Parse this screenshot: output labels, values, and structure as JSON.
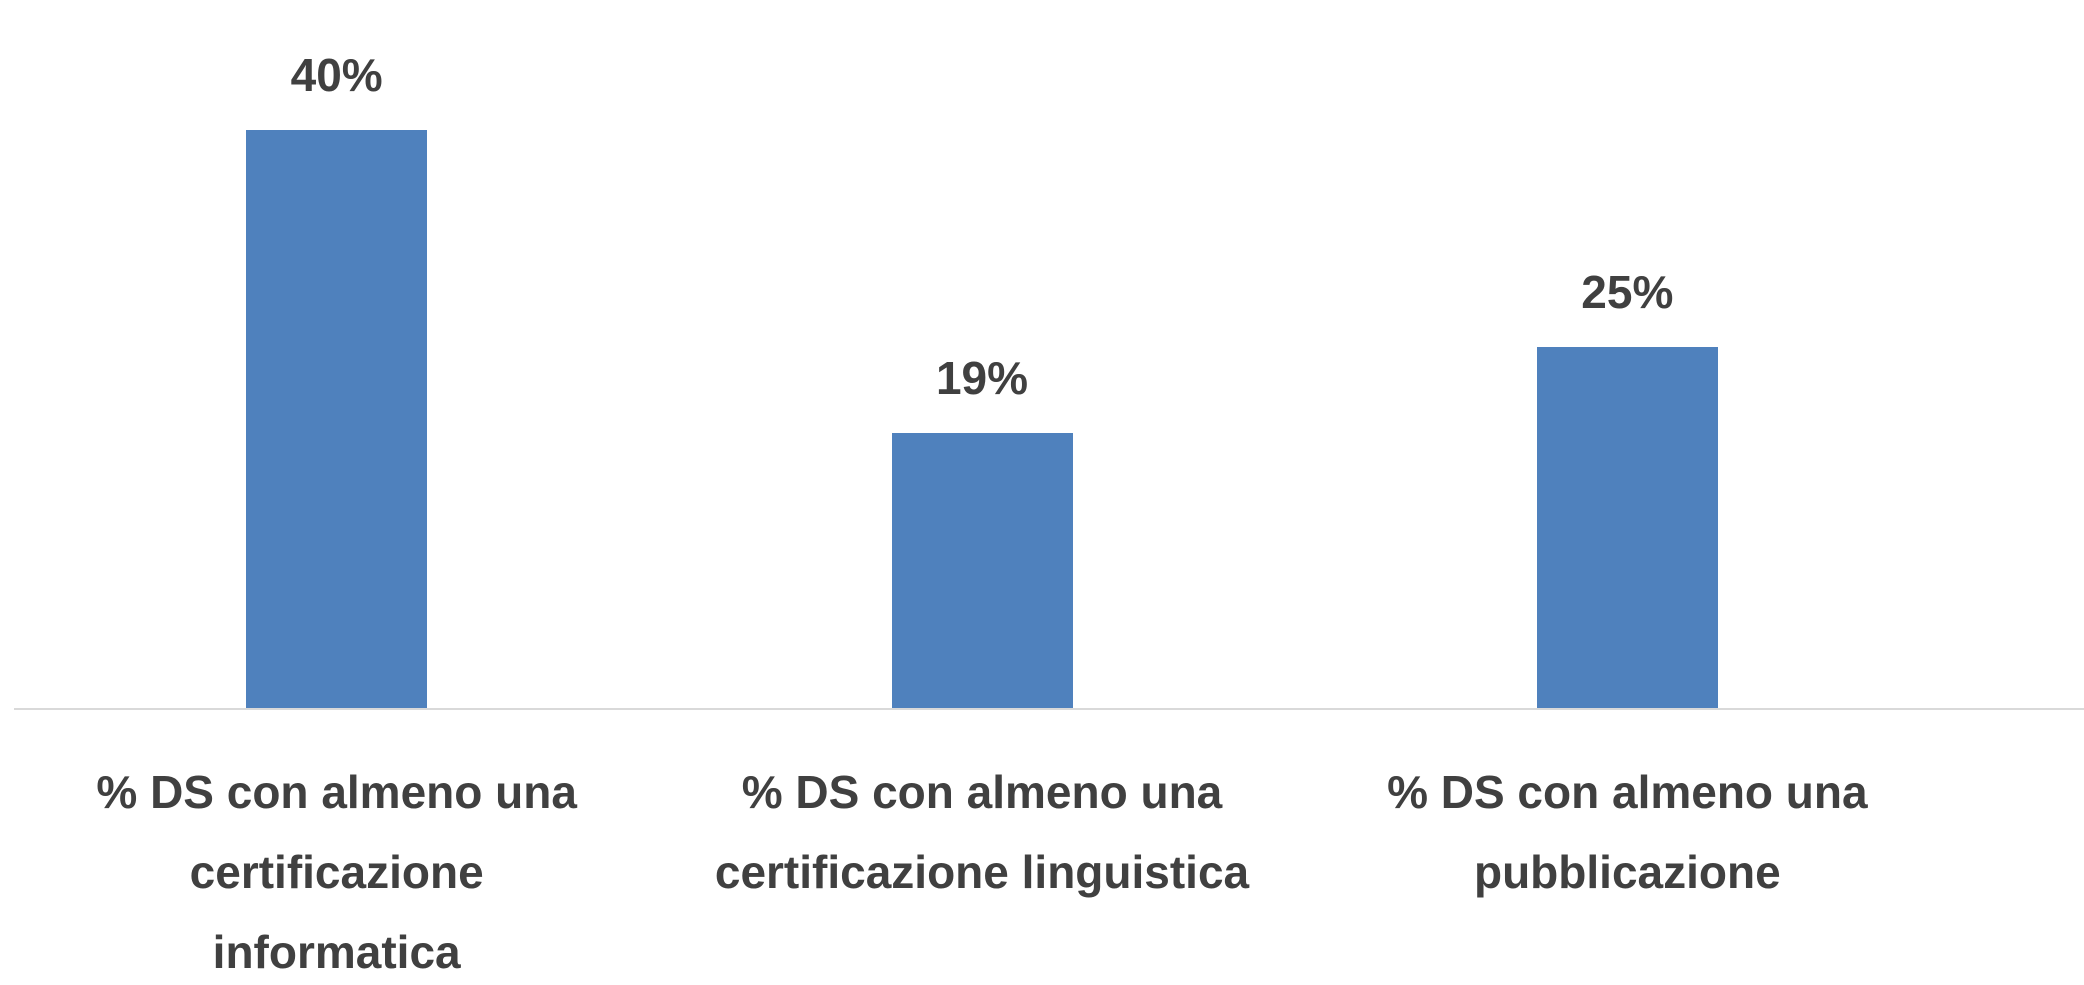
{
  "chart_data": {
    "type": "bar",
    "categories": [
      "% DS con almeno una certificazione informatica",
      "% DS con almeno una certificazione linguistica",
      "% DS con almeno una pubblicazione"
    ],
    "values": [
      40,
      19,
      25
    ],
    "value_labels": [
      "40%",
      "19%",
      "25%"
    ],
    "color": "#4f81bd"
  }
}
